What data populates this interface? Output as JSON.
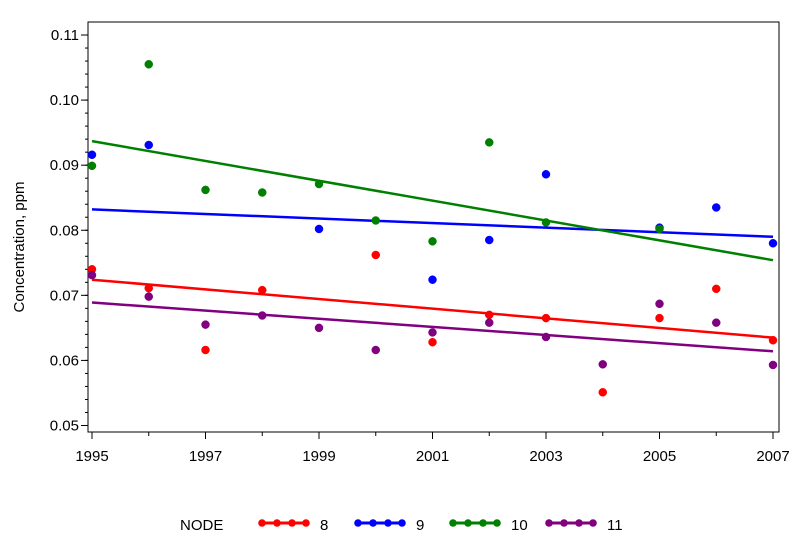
{
  "chart_data": {
    "type": "scatter",
    "title": "",
    "xlabel": "",
    "ylabel": "Concentration, ppm",
    "xlim": [
      1995,
      2007
    ],
    "ylim": [
      0.049,
      0.112
    ],
    "x_ticks": [
      1995,
      1997,
      1999,
      2001,
      2003,
      2005,
      2007
    ],
    "y_ticks": [
      0.05,
      0.06,
      0.07,
      0.08,
      0.09,
      0.1,
      0.11
    ],
    "y_tick_labels": [
      "0.05",
      "0.06",
      "0.07",
      "0.08",
      "0.09",
      "0.10",
      "0.11"
    ],
    "legend": {
      "title": "NODE",
      "position": "bottom"
    },
    "x": [
      1995,
      1996,
      1997,
      1998,
      1999,
      2000,
      2001,
      2002,
      2003,
      2004,
      2005,
      2006,
      2007
    ],
    "series": [
      {
        "name": "8",
        "color": "#ff0000",
        "values": [
          0.074,
          0.0711,
          0.0616,
          0.0708,
          null,
          0.0762,
          0.0628,
          0.067,
          0.0665,
          0.0551,
          0.0665,
          0.071,
          0.0631
        ],
        "trend": [
          0.0724,
          0.0635
        ]
      },
      {
        "name": "9",
        "color": "#0000ff",
        "values": [
          0.0916,
          0.0931,
          null,
          null,
          0.0802,
          null,
          0.0724,
          0.0785,
          0.0886,
          null,
          0.0804,
          0.0835,
          0.078
        ],
        "trend": [
          0.0832,
          0.079
        ]
      },
      {
        "name": "10",
        "color": "#008000",
        "values": [
          0.0899,
          0.1055,
          0.0862,
          0.0858,
          0.0871,
          0.0815,
          0.0783,
          0.0935,
          0.0812,
          null,
          0.0802,
          null,
          null
        ],
        "trend": [
          0.0937,
          0.0754
        ]
      },
      {
        "name": "11",
        "color": "#800080",
        "values": [
          0.0731,
          0.0698,
          0.0655,
          0.0669,
          0.065,
          0.0616,
          0.0643,
          0.0658,
          0.0636,
          0.0594,
          0.0687,
          0.0658,
          0.0593
        ],
        "trend": [
          0.0689,
          0.0614
        ]
      }
    ]
  }
}
